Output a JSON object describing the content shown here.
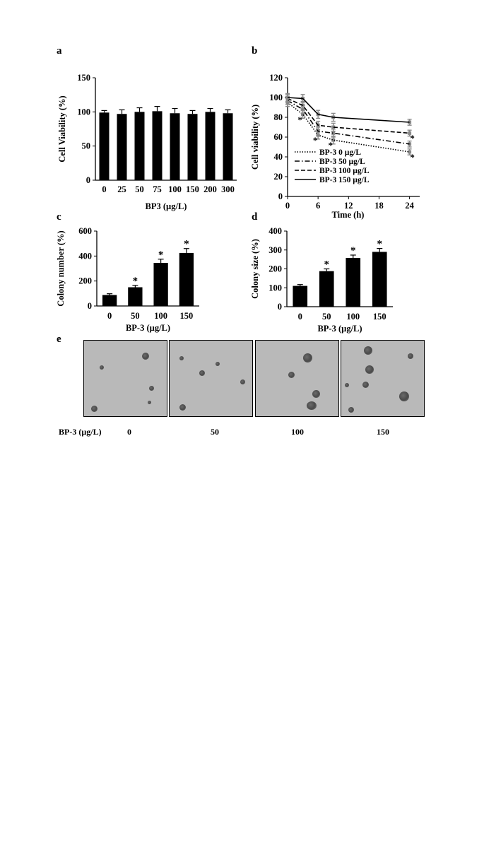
{
  "panel_letters": {
    "a": "a",
    "b": "b",
    "c": "c",
    "d": "d",
    "e": "e"
  },
  "chart_data": [
    {
      "id": "a",
      "type": "bar",
      "categories": [
        "0",
        "25",
        "50",
        "75",
        "100",
        "150",
        "200",
        "300"
      ],
      "values": [
        99,
        97,
        100,
        101,
        98,
        97,
        100,
        98
      ],
      "errors": [
        3,
        6,
        6,
        7,
        7,
        5,
        5,
        5
      ],
      "ylabel": "Cell Viability (%)",
      "xlabel": "BP3 (µg/L)",
      "ylim": [
        0,
        150
      ],
      "yticks": [
        0,
        50,
        100,
        150
      ],
      "grid": false
    },
    {
      "id": "b",
      "type": "line",
      "x": [
        0,
        3,
        6,
        9,
        24
      ],
      "series": [
        {
          "name": "BP-3 0 µg/L",
          "values": [
            95,
            83,
            62,
            57,
            45
          ],
          "style": "dotted"
        },
        {
          "name": "BP-3 50 µg/L",
          "values": [
            97,
            88,
            66,
            64,
            53
          ],
          "style": "dashdot"
        },
        {
          "name": "BP-3 100 µg/L",
          "values": [
            99,
            92,
            72,
            70,
            64
          ],
          "style": "dashed"
        },
        {
          "name": "BP-3 150 µg/L",
          "values": [
            100,
            99,
            83,
            80,
            75
          ],
          "style": "solid"
        }
      ],
      "errors": [
        4,
        4,
        4,
        4,
        3
      ],
      "asterisks_x": [
        3,
        6,
        9,
        24
      ],
      "ylabel": "Cell viability (%)",
      "xlabel": "Time (h)",
      "xticks": [
        0,
        6,
        12,
        18,
        24
      ],
      "yticks": [
        0,
        20,
        40,
        60,
        80,
        100,
        120
      ],
      "xlim": [
        0,
        26
      ],
      "ylim": [
        0,
        120
      ],
      "legend_placement": "bottom-left"
    },
    {
      "id": "c",
      "type": "bar",
      "categories": [
        "0",
        "50",
        "100",
        "150"
      ],
      "values": [
        88,
        150,
        345,
        425
      ],
      "errors": [
        10,
        15,
        30,
        35
      ],
      "significant": [
        false,
        true,
        true,
        true
      ],
      "ylabel": "Colony number (%)",
      "xlabel": "BP-3 (µg/L)",
      "ylim": [
        0,
        600
      ],
      "yticks": [
        0,
        200,
        400,
        600
      ]
    },
    {
      "id": "d",
      "type": "bar",
      "categories": [
        "0",
        "50",
        "100",
        "150"
      ],
      "values": [
        110,
        188,
        258,
        290
      ],
      "errors": [
        7,
        12,
        15,
        18
      ],
      "significant": [
        false,
        true,
        true,
        true
      ],
      "ylabel": "Colony size (%)",
      "xlabel": "BP-3 (µg/L)",
      "ylim": [
        0,
        400
      ],
      "yticks": [
        0,
        100,
        200,
        300,
        400
      ]
    }
  ],
  "asterisk": "*",
  "panel_e": {
    "row_label": "BP-3 (µg/L)",
    "doses": [
      "0",
      "50",
      "100",
      "150"
    ]
  }
}
